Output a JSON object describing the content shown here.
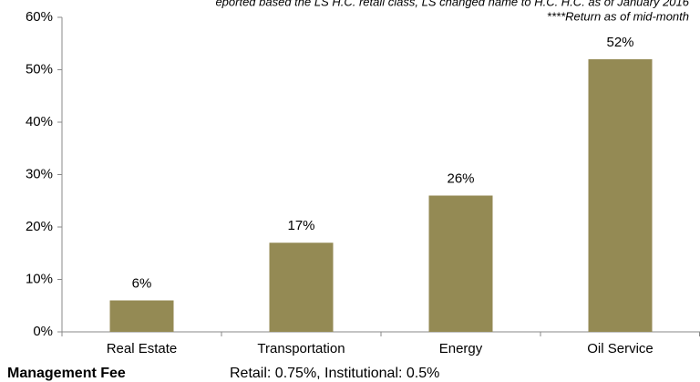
{
  "chart_data": {
    "type": "bar",
    "notes": [
      "eported based the LS H.C. retail class, LS changed name to H.C. H.C. as of January 2016",
      "****Return as of mid-month"
    ],
    "categories": [
      "Real Estate",
      "Transportation",
      "Energy",
      "Oil Service"
    ],
    "values": [
      6,
      17,
      26,
      52
    ],
    "value_labels": [
      "6%",
      "17%",
      "26%",
      "52%"
    ],
    "color": "#948a54",
    "ylim": [
      0,
      60
    ],
    "yticks": [
      {
        "value": 0,
        "label": "0%"
      },
      {
        "value": 10,
        "label": "10%"
      },
      {
        "value": 20,
        "label": "20%"
      },
      {
        "value": 30,
        "label": "30%"
      },
      {
        "value": 40,
        "label": "40%"
      },
      {
        "value": 50,
        "label": "50%"
      },
      {
        "value": 60,
        "label": "60%"
      }
    ],
    "footer": {
      "label": "Management Fee",
      "text": "Retail: 0.75%, Institutional: 0.5%"
    }
  }
}
